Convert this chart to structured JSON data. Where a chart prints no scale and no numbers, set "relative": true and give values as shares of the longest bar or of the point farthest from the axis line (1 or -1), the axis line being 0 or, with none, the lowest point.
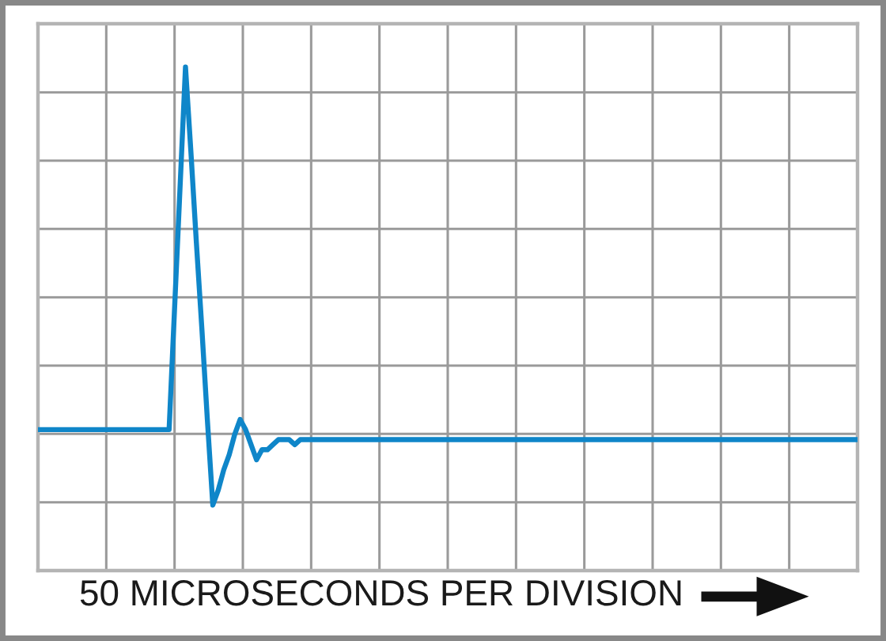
{
  "chart_data": {
    "type": "line",
    "xlabel": "50 MICROSECONDS PER DIVISION",
    "relative": true,
    "grid": true,
    "categories": [
      null,
      null,
      null,
      null,
      null,
      null,
      null,
      null,
      null,
      null,
      null,
      null,
      null,
      null,
      null,
      null,
      null,
      null,
      null,
      null,
      null,
      null,
      null,
      null,
      null,
      null,
      null,
      null,
      null,
      null,
      null,
      null,
      null,
      null,
      null,
      null,
      null,
      null,
      null,
      null,
      null,
      null,
      null,
      null,
      null,
      null,
      null,
      null,
      null,
      null,
      null,
      null,
      null,
      null,
      null,
      null,
      null,
      null,
      null,
      null,
      null,
      null,
      null,
      null,
      null,
      null,
      null,
      null,
      null,
      null,
      null,
      null,
      null,
      null,
      null,
      null,
      null,
      null,
      null,
      null,
      null,
      null,
      null,
      null,
      null,
      null,
      null,
      null,
      null,
      null,
      null,
      null,
      null,
      null,
      null,
      null,
      null,
      null,
      null,
      null,
      null,
      null,
      null,
      null,
      null,
      null,
      null,
      null,
      null,
      null,
      null,
      null,
      null,
      null,
      null,
      null,
      null,
      null,
      null,
      null,
      null,
      null,
      null,
      null,
      null,
      null,
      null,
      null,
      null,
      null,
      null,
      null,
      null,
      null,
      null,
      null,
      null,
      null,
      null,
      null,
      null,
      null,
      null,
      null,
      null,
      null,
      null,
      null,
      null,
      null,
      null
    ],
    "series": [
      {
        "color": "#0f86c9",
        "values": [
          0.28,
          0.28,
          0.28,
          0.28,
          0.28,
          0.28,
          0.28,
          0.28,
          0.28,
          0.28,
          0.28,
          0.28,
          0.28,
          0.28,
          0.28,
          0.28,
          0.28,
          0.28,
          0.28,
          0.28,
          0.28,
          0.28,
          0.28,
          0.28,
          0.28,
          0.52,
          0.76,
          1,
          0.83,
          0.65,
          0.48,
          0.3,
          0.13,
          0.16,
          0.2,
          0.23,
          0.27,
          0.3,
          0.28,
          0.25,
          0.22,
          0.24,
          0.24,
          0.25,
          0.26,
          0.26,
          0.26,
          0.25,
          0.26,
          0.26,
          0.26,
          0.26,
          0.26,
          0.26,
          0.26,
          0.26,
          0.26,
          0.26,
          0.26,
          0.26,
          0.26,
          0.26,
          0.26,
          0.26,
          0.26,
          0.26,
          0.26,
          0.26,
          0.26,
          0.26,
          0.26,
          0.26,
          0.26,
          0.26,
          0.26,
          0.26,
          0.26,
          0.26,
          0.26,
          0.26,
          0.26,
          0.26,
          0.26,
          0.26,
          0.26,
          0.26,
          0.26,
          0.26,
          0.26,
          0.26,
          0.26,
          0.26,
          0.26,
          0.26,
          0.26,
          0.26,
          0.26,
          0.26,
          0.26,
          0.26,
          0.26,
          0.26,
          0.26,
          0.26,
          0.26,
          0.26,
          0.26,
          0.26,
          0.26,
          0.26,
          0.26,
          0.26,
          0.26,
          0.26,
          0.26,
          0.26,
          0.26,
          0.26,
          0.26,
          0.26,
          0.26,
          0.26,
          0.26,
          0.26,
          0.26,
          0.26,
          0.26,
          0.26,
          0.26,
          0.26,
          0.26,
          0.26,
          0.26,
          0.26,
          0.26,
          0.26,
          0.26,
          0.26,
          0.26,
          0.26,
          0.26,
          0.26,
          0.26,
          0.26,
          0.26,
          0.26,
          0.26,
          0.26,
          0.26,
          0.26,
          0.26
        ]
      }
    ]
  }
}
